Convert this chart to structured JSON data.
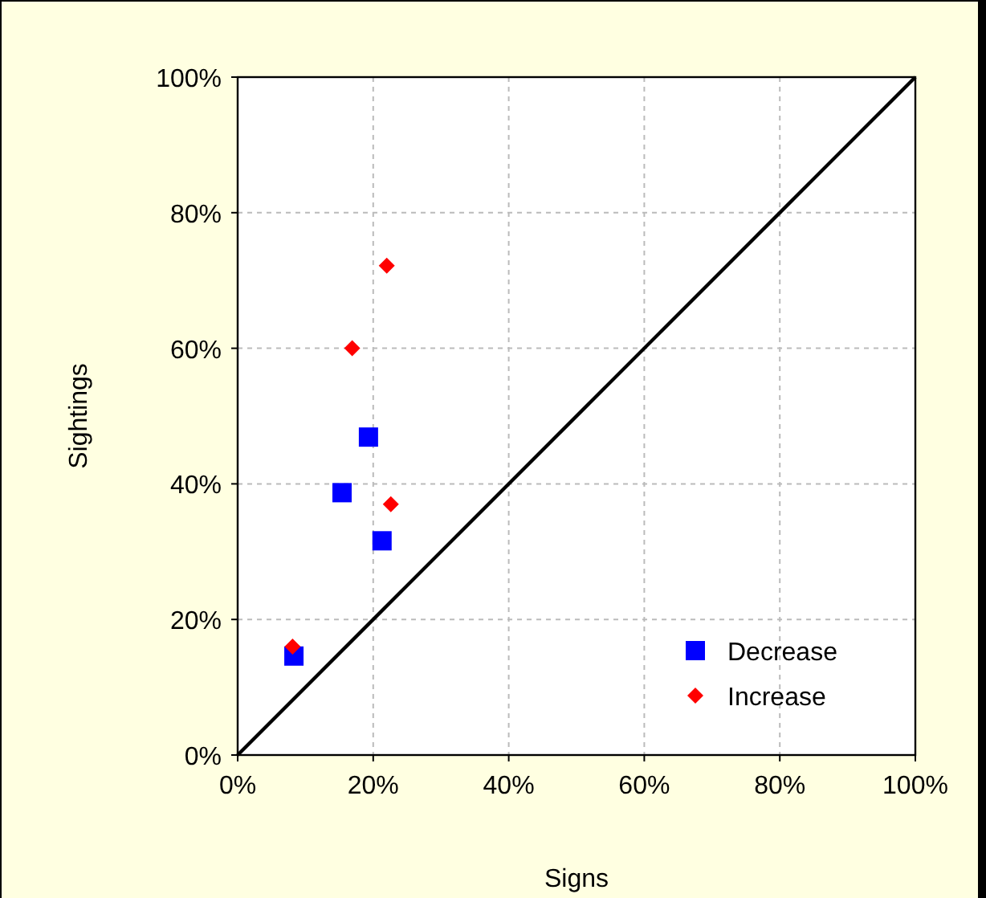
{
  "chart_data": {
    "type": "scatter",
    "xlabel": "Signs",
    "ylabel": "Sightings",
    "xlim": [
      0,
      100
    ],
    "ylim": [
      0,
      100
    ],
    "xticks": [
      {
        "value": 0,
        "label": "0%"
      },
      {
        "value": 20,
        "label": "20%"
      },
      {
        "value": 40,
        "label": "40%"
      },
      {
        "value": 60,
        "label": "60%"
      },
      {
        "value": 80,
        "label": "80%"
      },
      {
        "value": 100,
        "label": "100%"
      }
    ],
    "yticks": [
      {
        "value": 0,
        "label": "0%"
      },
      {
        "value": 20,
        "label": "20%"
      },
      {
        "value": 40,
        "label": "40%"
      },
      {
        "value": 60,
        "label": "60%"
      },
      {
        "value": 80,
        "label": "80%"
      },
      {
        "value": 100,
        "label": "100%"
      }
    ],
    "grid": true,
    "legend": "bottom right",
    "series": [
      {
        "name": "Decrease",
        "color": "#0000ff",
        "marker": "square",
        "x": [
          8.3,
          15.4,
          19.3,
          21.3
        ],
        "values": [
          14.6,
          38.7,
          46.9,
          31.6
        ]
      },
      {
        "name": "Increase",
        "color": "#ff0000",
        "marker": "diamond",
        "x": [
          8.1,
          16.9,
          22.0,
          22.6
        ],
        "values": [
          16,
          60,
          72.2,
          37
        ]
      },
      {
        "type": "line",
        "color": "#000000",
        "marker": "none",
        "x": [
          0,
          100
        ],
        "values": [
          0,
          100
        ]
      }
    ]
  }
}
